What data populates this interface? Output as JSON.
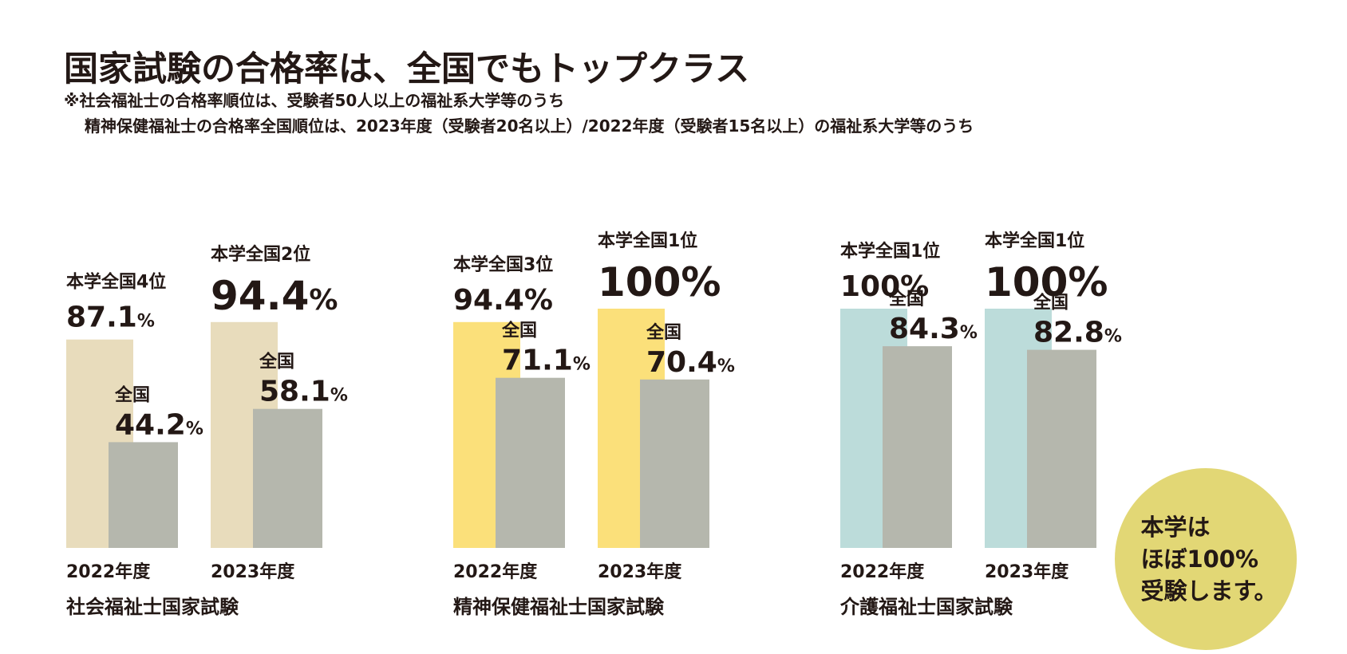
{
  "title": "国家試験の合格率は、全国でもトップクラス",
  "notes": [
    "※社会福祉士の合格率順位は、受験者50人以上の福祉系大学等のうち",
    "精神保健福祉士の合格率全国順位は、2023年度（受験者20名以上）/2022年度（受験者15名以上）の福祉系大学等のうち"
  ],
  "badge": [
    "本学は",
    "ほぼ100%",
    "受験します。"
  ],
  "chart_data": [
    {
      "type": "bar",
      "title": "社会福祉士国家試験",
      "categories": [
        "2022年度",
        "2023年度"
      ],
      "series": [
        {
          "name": "本学",
          "values": [
            87.1,
            94.4
          ],
          "color": "#e8dcbc"
        },
        {
          "name": "全国",
          "values": [
            44.2,
            58.1
          ],
          "color": "#b5b7ad"
        }
      ],
      "school_labels": [
        "本学全国4位",
        "本学全国2位"
      ],
      "school_values_text": [
        "87.1",
        "94.4"
      ],
      "national_label": "全国",
      "national_values_text": [
        "44.2",
        "58.1"
      ],
      "unit": "%",
      "ylim": [
        0,
        100
      ]
    },
    {
      "type": "bar",
      "title": "精神保健福祉士国家試験",
      "categories": [
        "2022年度",
        "2023年度"
      ],
      "series": [
        {
          "name": "本学",
          "values": [
            94.4,
            100
          ],
          "color": "#fbe07a"
        },
        {
          "name": "全国",
          "values": [
            71.1,
            70.4
          ],
          "color": "#b5b7ad"
        }
      ],
      "school_labels": [
        "本学全国3位",
        "本学全国1位"
      ],
      "school_values_text": [
        "94.4%",
        "100%"
      ],
      "national_label": "全国",
      "national_values_text": [
        "71.1",
        "70.4"
      ],
      "unit": "%",
      "ylim": [
        0,
        100
      ]
    },
    {
      "type": "bar",
      "title": "介護福祉士国家試験",
      "categories": [
        "2022年度",
        "2023年度"
      ],
      "series": [
        {
          "name": "本学",
          "values": [
            100,
            100
          ],
          "color": "#bcdcda"
        },
        {
          "name": "全国",
          "values": [
            84.3,
            82.8
          ],
          "color": "#b5b7ad"
        }
      ],
      "school_labels": [
        "本学全国1位",
        "本学全国1位"
      ],
      "school_values_text": [
        "100%",
        "100%"
      ],
      "national_label": "全国",
      "national_values_text": [
        "84.3",
        "82.8"
      ],
      "unit": "%",
      "ylim": [
        0,
        100
      ]
    }
  ]
}
